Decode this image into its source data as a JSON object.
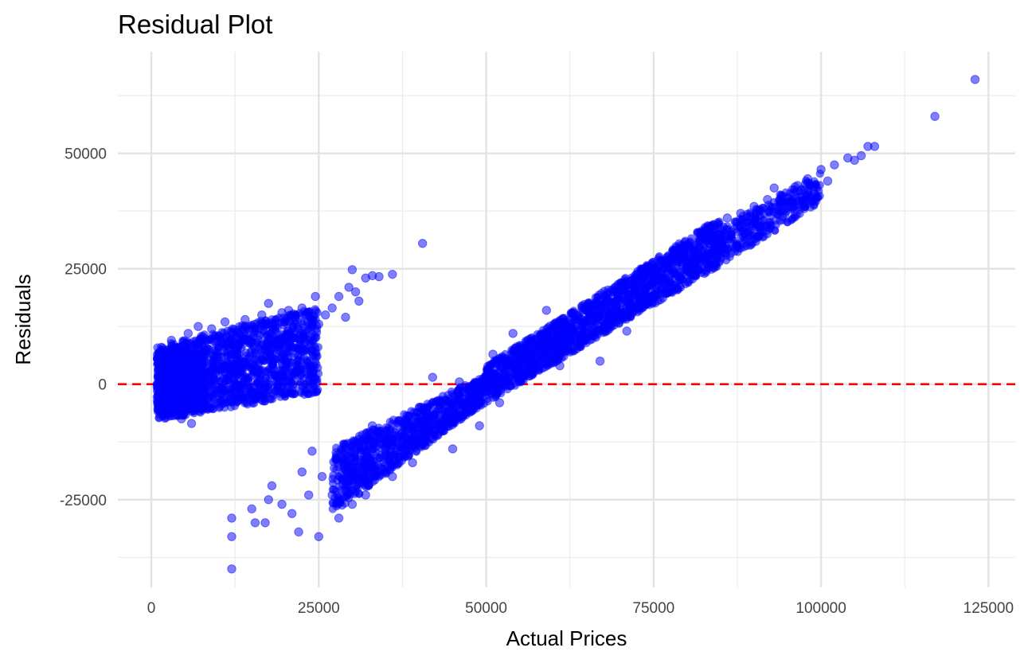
{
  "chart_data": {
    "type": "scatter",
    "title": "Residual Plot",
    "xlabel": "Actual Prices",
    "ylabel": "Residuals",
    "xlim": [
      -5000,
      129000
    ],
    "ylim": [
      -44000,
      72000
    ],
    "x_ticks": [
      0,
      25000,
      50000,
      75000,
      100000,
      125000
    ],
    "x_tick_labels": [
      "0",
      "25000",
      "50000",
      "75000",
      "100000",
      "125000"
    ],
    "y_ticks": [
      -25000,
      0,
      25000,
      50000
    ],
    "y_tick_labels": [
      "-25000",
      "0",
      "25000",
      "50000"
    ],
    "grid": true,
    "point_color": "#0000ff",
    "point_opacity": 0.5,
    "reference_line": {
      "y": 0,
      "color": "#ff0000",
      "style": "dashed"
    },
    "series": [
      {
        "points": [
          [
            1000,
            -4000
          ],
          [
            1500,
            8000
          ],
          [
            2000,
            1000
          ],
          [
            2500,
            -6000
          ],
          [
            3000,
            9500
          ],
          [
            3500,
            -2000
          ],
          [
            4000,
            6000
          ],
          [
            4500,
            -7500
          ],
          [
            5000,
            3000
          ],
          [
            5500,
            11000
          ],
          [
            6000,
            -8500
          ],
          [
            6500,
            0
          ],
          [
            7000,
            12500
          ],
          [
            7500,
            -5000
          ],
          [
            8000,
            7000
          ],
          [
            8500,
            -3000
          ],
          [
            9000,
            12000
          ],
          [
            9500,
            4000
          ],
          [
            10000,
            -2500
          ],
          [
            10500,
            9000
          ],
          [
            11000,
            13500
          ],
          [
            11500,
            1000
          ],
          [
            12000,
            6500
          ],
          [
            12500,
            -1500
          ],
          [
            13000,
            11000
          ],
          [
            13500,
            3500
          ],
          [
            14000,
            14000
          ],
          [
            14500,
            500
          ],
          [
            15000,
            9000
          ],
          [
            15500,
            13000
          ],
          [
            16000,
            3000
          ],
          [
            16500,
            15000
          ],
          [
            17000,
            7500
          ],
          [
            17500,
            17500
          ],
          [
            18000,
            2000
          ],
          [
            18500,
            12500
          ],
          [
            19000,
            8000
          ],
          [
            19500,
            15500
          ],
          [
            20000,
            5000
          ],
          [
            20500,
            16000
          ],
          [
            21000,
            10000
          ],
          [
            21500,
            14500
          ],
          [
            22000,
            7500
          ],
          [
            22500,
            16500
          ],
          [
            23000,
            11000
          ],
          [
            23500,
            15000
          ],
          [
            24000,
            12500
          ],
          [
            24500,
            19000
          ],
          [
            25000,
            13000
          ],
          [
            26000,
            15000
          ],
          [
            27000,
            16500
          ],
          [
            28000,
            19000
          ],
          [
            29000,
            14500
          ],
          [
            29500,
            21000
          ],
          [
            30000,
            24800
          ],
          [
            30500,
            20000
          ],
          [
            31000,
            18000
          ],
          [
            32000,
            23000
          ],
          [
            33000,
            23500
          ],
          [
            34000,
            23300
          ],
          [
            36000,
            23800
          ],
          [
            40500,
            30500
          ],
          [
            12000,
            -40000
          ],
          [
            12000,
            -33000
          ],
          [
            12000,
            -29000
          ],
          [
            15000,
            -27000
          ],
          [
            15500,
            -30000
          ],
          [
            17000,
            -30000
          ],
          [
            17500,
            -25000
          ],
          [
            18000,
            -22000
          ],
          [
            19500,
            -26000
          ],
          [
            21000,
            -28000
          ],
          [
            22000,
            -32000
          ],
          [
            22500,
            -19000
          ],
          [
            23500,
            -24000
          ],
          [
            24000,
            -14500
          ],
          [
            25000,
            -33000
          ],
          [
            25500,
            -20000
          ],
          [
            27000,
            -24000
          ],
          [
            28000,
            -29000
          ],
          [
            28500,
            -16000
          ],
          [
            29500,
            -21000
          ],
          [
            30000,
            -26000
          ],
          [
            31000,
            -12000
          ],
          [
            32000,
            -24000
          ],
          [
            33000,
            -9000
          ],
          [
            34000,
            -19000
          ],
          [
            35000,
            -13000
          ],
          [
            36000,
            -20000
          ],
          [
            37000,
            -8000
          ],
          [
            38000,
            -14000
          ],
          [
            39000,
            -17000
          ],
          [
            40000,
            -5000
          ],
          [
            41000,
            -12000
          ],
          [
            42000,
            1500
          ],
          [
            43000,
            -9500
          ],
          [
            44000,
            -3500
          ],
          [
            45000,
            -14000
          ],
          [
            46000,
            500
          ],
          [
            47000,
            -6000
          ],
          [
            48000,
            -1500
          ],
          [
            49000,
            -9000
          ],
          [
            50000,
            2000
          ],
          [
            51000,
            6500
          ],
          [
            52000,
            -4000
          ],
          [
            53000,
            5000
          ],
          [
            54000,
            11000
          ],
          [
            55000,
            1000
          ],
          [
            56000,
            8000
          ],
          [
            57000,
            3500
          ],
          [
            58000,
            10500
          ],
          [
            59000,
            16000
          ],
          [
            60000,
            7500
          ],
          [
            61000,
            4000
          ],
          [
            62000,
            12000
          ],
          [
            63000,
            15500
          ],
          [
            64000,
            9000
          ],
          [
            65000,
            13500
          ],
          [
            66000,
            17000
          ],
          [
            67000,
            5000
          ],
          [
            68000,
            16000
          ],
          [
            69000,
            20000
          ],
          [
            70000,
            14000
          ],
          [
            71000,
            11500
          ],
          [
            72000,
            21500
          ],
          [
            73000,
            18500
          ],
          [
            74000,
            25500
          ],
          [
            75000,
            19000
          ],
          [
            76000,
            22000
          ],
          [
            77000,
            27500
          ],
          [
            78000,
            24000
          ],
          [
            79000,
            21000
          ],
          [
            80000,
            30000
          ],
          [
            81000,
            26000
          ],
          [
            82000,
            31500
          ],
          [
            83000,
            29000
          ],
          [
            84000,
            34500
          ],
          [
            85000,
            31000
          ],
          [
            86000,
            36000
          ],
          [
            87000,
            33500
          ],
          [
            88000,
            37000
          ],
          [
            89000,
            35000
          ],
          [
            90000,
            38500
          ],
          [
            91000,
            33500
          ],
          [
            92000,
            40000
          ],
          [
            93000,
            42500
          ],
          [
            94000,
            39000
          ],
          [
            95000,
            40500
          ],
          [
            96000,
            38500
          ],
          [
            97000,
            42000
          ],
          [
            98000,
            44500
          ],
          [
            99000,
            41500
          ],
          [
            100000,
            46500
          ],
          [
            101000,
            44000
          ],
          [
            102000,
            47500
          ],
          [
            104000,
            49000
          ],
          [
            105000,
            48500
          ],
          [
            106000,
            49500
          ],
          [
            107000,
            51500
          ],
          [
            108000,
            51500
          ],
          [
            117000,
            58000
          ],
          [
            123000,
            66000
          ]
        ]
      }
    ]
  }
}
